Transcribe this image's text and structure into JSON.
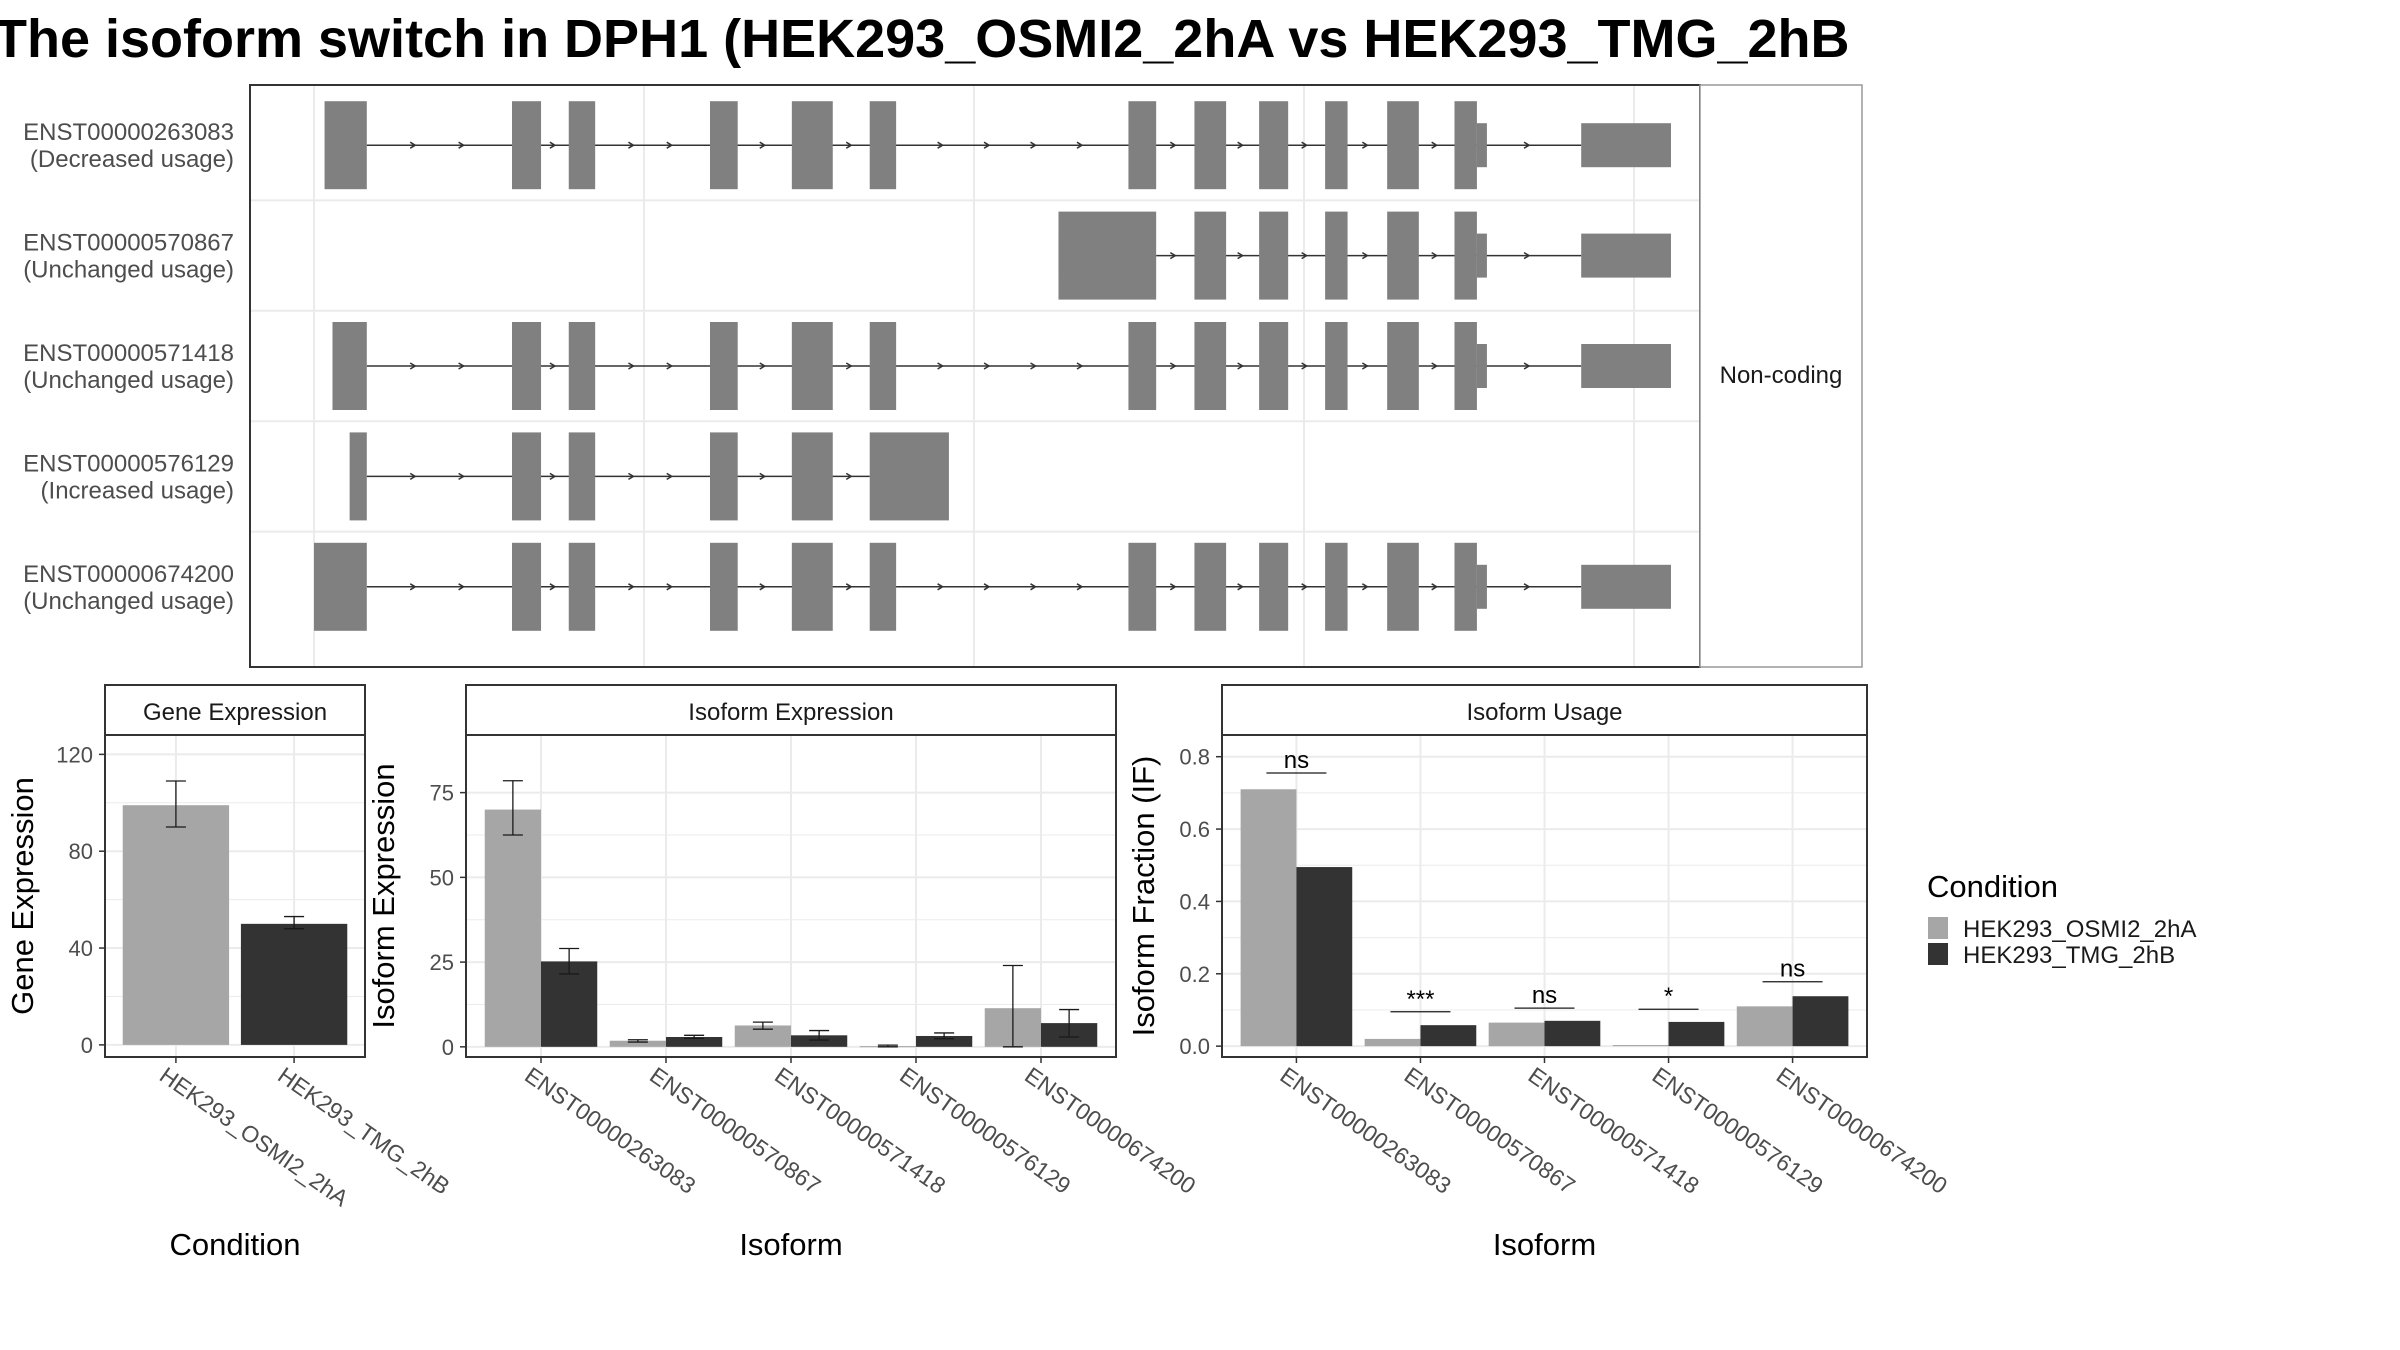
{
  "title": "The isoform switch in DPH1 (HEK293_OSMI2_2hA vs HEK293_TMG_2hB",
  "colors": {
    "cond1": "#a6a6a6",
    "cond2": "#333333",
    "exon": "#808080",
    "intron": "#333333",
    "grid": "#ebebeb",
    "panel_border": "#333333",
    "strip_border": "#999999"
  },
  "structure": {
    "strip_label": "Non-coding",
    "x_range": [
      0,
      1000
    ],
    "isoforms": [
      {
        "id": "ENST00000263083",
        "usage": "(Decreased usage)",
        "exons": [
          [
            8,
            40
          ],
          [
            150,
            172
          ],
          [
            193,
            213
          ],
          [
            300,
            321
          ],
          [
            362,
            393
          ],
          [
            421,
            441
          ],
          [
            617,
            638
          ],
          [
            667,
            691
          ],
          [
            716,
            738
          ],
          [
            766,
            783
          ],
          [
            813,
            837
          ],
          [
            864,
            881
          ],
          [
            960,
            1028
          ]
        ]
      },
      {
        "id": "ENST00000570867",
        "usage": "(Unchanged usage)",
        "exons": [
          [
            564,
            638
          ],
          [
            667,
            691
          ],
          [
            716,
            738
          ],
          [
            766,
            783
          ],
          [
            813,
            837
          ],
          [
            864,
            881
          ],
          [
            960,
            1028
          ]
        ]
      },
      {
        "id": "ENST00000571418",
        "usage": "(Unchanged usage)",
        "exons": [
          [
            14,
            40
          ],
          [
            150,
            172
          ],
          [
            193,
            213
          ],
          [
            300,
            321
          ],
          [
            362,
            393
          ],
          [
            421,
            441
          ],
          [
            617,
            638
          ],
          [
            667,
            691
          ],
          [
            716,
            738
          ],
          [
            766,
            783
          ],
          [
            813,
            837
          ],
          [
            864,
            881
          ],
          [
            960,
            1028
          ]
        ]
      },
      {
        "id": "ENST00000576129",
        "usage": "(Increased usage)",
        "exons": [
          [
            27,
            40
          ],
          [
            150,
            172
          ],
          [
            193,
            213
          ],
          [
            300,
            321
          ],
          [
            362,
            393
          ],
          [
            421,
            481
          ]
        ]
      },
      {
        "id": "ENST00000674200",
        "usage": "(Unchanged usage)",
        "exons": [
          [
            0,
            40
          ],
          [
            150,
            172
          ],
          [
            193,
            213
          ],
          [
            300,
            321
          ],
          [
            362,
            393
          ],
          [
            421,
            441
          ],
          [
            617,
            638
          ],
          [
            667,
            691
          ],
          [
            716,
            738
          ],
          [
            766,
            783
          ],
          [
            813,
            837
          ],
          [
            864,
            881
          ],
          [
            960,
            1028
          ]
        ]
      }
    ]
  },
  "legend": {
    "title": "Condition",
    "items": [
      "HEK293_OSMI2_2hA",
      "HEK293_TMG_2hB"
    ]
  },
  "chart_data": [
    {
      "type": "bar",
      "title": "Gene Expression",
      "xlabel": "Condition",
      "ylabel": "Gene Expression",
      "ylim": [
        -5,
        128
      ],
      "yticks": [
        0,
        40,
        80,
        120
      ],
      "categories": [
        "HEK293_OSMI2_2hA",
        "HEK293_TMG_2hB"
      ],
      "series": [
        {
          "name": "HEK293_OSMI2_2hA",
          "values": [
            99,
            null
          ],
          "err": [
            [
              90,
              109
            ],
            null
          ]
        },
        {
          "name": "HEK293_TMG_2hB",
          "values": [
            null,
            50
          ],
          "err": [
            null,
            [
              48,
              53
            ]
          ]
        }
      ],
      "grid": true
    },
    {
      "type": "bar",
      "title": "Isoform Expression",
      "xlabel": "Isoform",
      "ylabel": "Isoform Expression",
      "ylim": [
        -3,
        92
      ],
      "yticks": [
        0,
        25,
        50,
        75
      ],
      "categories": [
        "ENST00000263083",
        "ENST00000570867",
        "ENST00000571418",
        "ENST00000576129",
        "ENST00000674200"
      ],
      "series": [
        {
          "name": "HEK293_OSMI2_2hA",
          "values": [
            70,
            1.8,
            6.3,
            0.2,
            11.4
          ],
          "err": [
            [
              62.5,
              78.5
            ],
            [
              1.4,
              2.1
            ],
            [
              5.2,
              7.3
            ],
            [
              0,
              0.5
            ],
            [
              0,
              24
            ]
          ]
        },
        {
          "name": "HEK293_TMG_2hB",
          "values": [
            25.2,
            2.9,
            3.4,
            3.2,
            7
          ],
          "err": [
            [
              21.5,
              29
            ],
            [
              2.5,
              3.4
            ],
            [
              2,
              4.8
            ],
            [
              2.4,
              4.1
            ],
            [
              2.9,
              11
            ]
          ]
        }
      ],
      "grid": true
    },
    {
      "type": "bar",
      "title": "Isoform Usage",
      "xlabel": "Isoform",
      "ylabel": "Isoform Fraction (IF)",
      "ylim": [
        -0.03,
        0.86
      ],
      "yticks": [
        0.0,
        0.2,
        0.4,
        0.6,
        0.8
      ],
      "ytick_labels": [
        "0.0",
        "0.2",
        "0.4",
        "0.6",
        "0.8"
      ],
      "categories": [
        "ENST00000263083",
        "ENST00000570867",
        "ENST00000571418",
        "ENST00000576129",
        "ENST00000674200"
      ],
      "series": [
        {
          "name": "HEK293_OSMI2_2hA",
          "values": [
            0.71,
            0.02,
            0.065,
            0.003,
            0.11
          ]
        },
        {
          "name": "HEK293_TMG_2hB",
          "values": [
            0.495,
            0.058,
            0.07,
            0.067,
            0.138
          ]
        }
      ],
      "annotations": [
        {
          "category": "ENST00000263083",
          "label": "ns",
          "y": 0.755
        },
        {
          "category": "ENST00000570867",
          "label": "***",
          "y": 0.095
        },
        {
          "category": "ENST00000571418",
          "label": "ns",
          "y": 0.105
        },
        {
          "category": "ENST00000576129",
          "label": "*",
          "y": 0.102
        },
        {
          "category": "ENST00000674200",
          "label": "ns",
          "y": 0.178
        }
      ],
      "grid": true
    }
  ]
}
